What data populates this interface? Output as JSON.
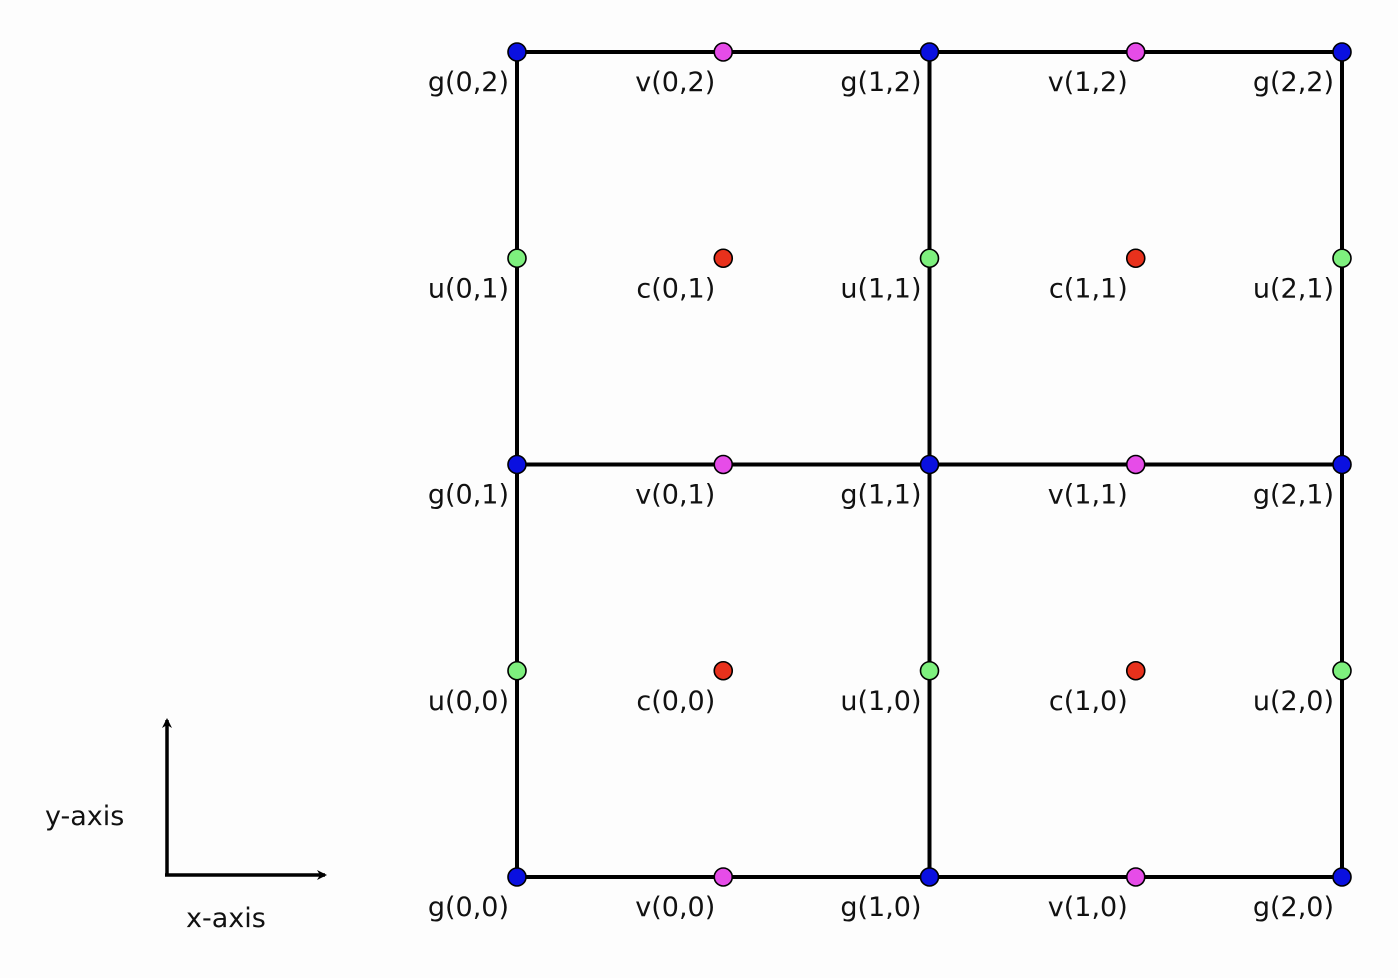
{
  "colors": {
    "g": "#0a10e0",
    "u": "#7ef07e",
    "v": "#e64ce8",
    "c": "#e8311c",
    "line": "#000000"
  },
  "axes": {
    "x_label": "x-axis",
    "y_label": "y-axis"
  },
  "grid": {
    "cells_x": 2,
    "cells_y": 2
  },
  "nodes": {
    "g": [
      {
        "i": 0,
        "j": 0,
        "label": "g(0,0)"
      },
      {
        "i": 1,
        "j": 0,
        "label": "g(1,0)"
      },
      {
        "i": 2,
        "j": 0,
        "label": "g(2,0)"
      },
      {
        "i": 0,
        "j": 1,
        "label": "g(0,1)"
      },
      {
        "i": 1,
        "j": 1,
        "label": "g(1,1)"
      },
      {
        "i": 2,
        "j": 1,
        "label": "g(2,1)"
      },
      {
        "i": 0,
        "j": 2,
        "label": "g(0,2)"
      },
      {
        "i": 1,
        "j": 2,
        "label": "g(1,2)"
      },
      {
        "i": 2,
        "j": 2,
        "label": "g(2,2)"
      }
    ],
    "u": [
      {
        "i": 0,
        "j": 0,
        "label": "u(0,0)"
      },
      {
        "i": 1,
        "j": 0,
        "label": "u(1,0)"
      },
      {
        "i": 2,
        "j": 0,
        "label": "u(2,0)"
      },
      {
        "i": 0,
        "j": 1,
        "label": "u(0,1)"
      },
      {
        "i": 1,
        "j": 1,
        "label": "u(1,1)"
      },
      {
        "i": 2,
        "j": 1,
        "label": "u(2,1)"
      }
    ],
    "v": [
      {
        "i": 0,
        "j": 0,
        "label": "v(0,0)"
      },
      {
        "i": 1,
        "j": 0,
        "label": "v(1,0)"
      },
      {
        "i": 0,
        "j": 1,
        "label": "v(0,1)"
      },
      {
        "i": 1,
        "j": 1,
        "label": "v(1,1)"
      },
      {
        "i": 0,
        "j": 2,
        "label": "v(0,2)"
      },
      {
        "i": 1,
        "j": 2,
        "label": "v(1,2)"
      }
    ],
    "c": [
      {
        "i": 0,
        "j": 0,
        "label": "c(0,0)"
      },
      {
        "i": 1,
        "j": 0,
        "label": "c(1,0)"
      },
      {
        "i": 0,
        "j": 1,
        "label": "c(0,1)"
      },
      {
        "i": 1,
        "j": 1,
        "label": "c(1,1)"
      }
    ]
  }
}
